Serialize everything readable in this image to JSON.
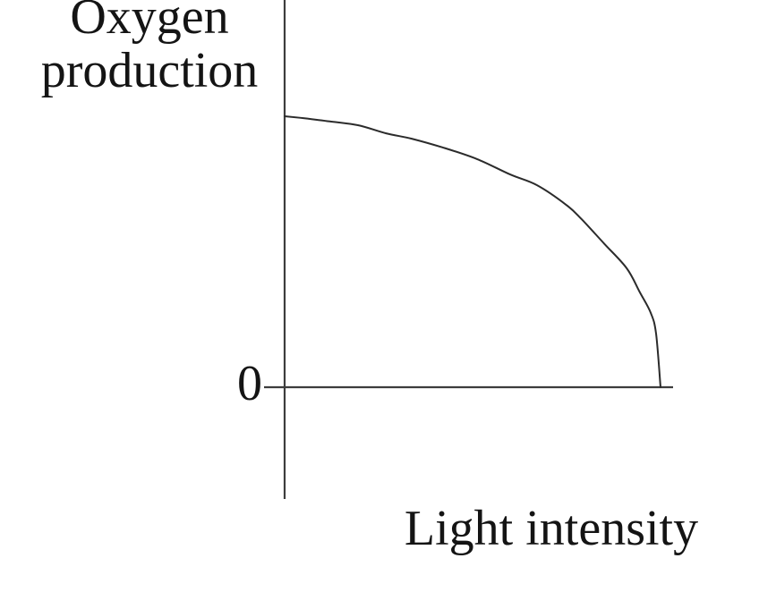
{
  "figure": {
    "background": "#ffffff",
    "axis_color": "#3d3d3d",
    "curve_color": "#2b2b2b",
    "text_color": "#141414"
  },
  "chart_data": {
    "type": "line",
    "title": "",
    "xlabel": "Light intensity",
    "ylabel": "Oxygen production",
    "ylabel_display": "Oxygen\nproduction",
    "origin_tick_label": "0",
    "x_range": [
      0,
      1
    ],
    "y_range": [
      0,
      1
    ],
    "grid": false,
    "legend": false,
    "tick_labels_x": [],
    "tick_labels_y": [],
    "annotation": "qualitative sketch: oxygen production is high at low light intensity and falls steeply to zero at high light intensity",
    "series": [
      {
        "name": "oxygen-production-curve",
        "x": [
          0.0,
          0.05,
          0.12,
          0.195,
          0.27,
          0.338,
          0.42,
          0.512,
          0.6,
          0.671,
          0.75,
          0.79,
          0.85,
          0.91,
          0.945,
          0.974,
          0.988,
          1.0
        ],
        "y": [
          1.0,
          0.993,
          0.981,
          0.967,
          0.937,
          0.917,
          0.885,
          0.842,
          0.785,
          0.746,
          0.672,
          0.62,
          0.53,
          0.439,
          0.35,
          0.274,
          0.198,
          0.0
        ]
      }
    ]
  }
}
